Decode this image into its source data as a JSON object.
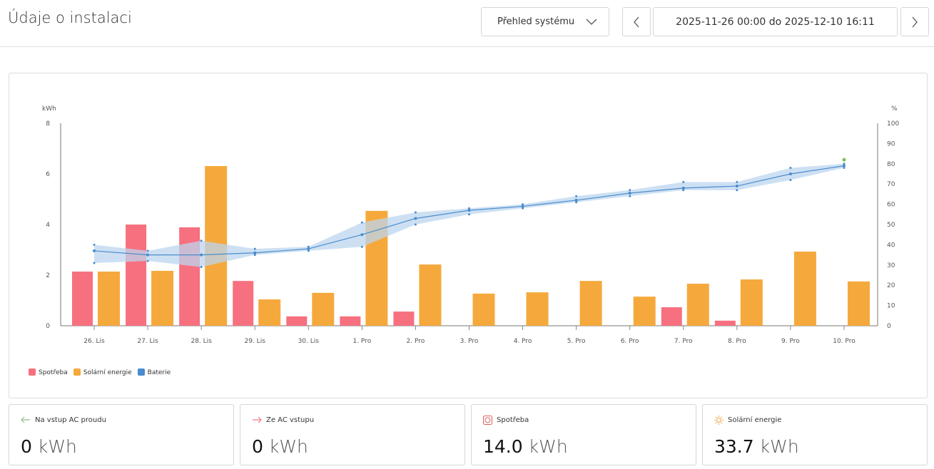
{
  "header": {
    "title": "Údaje o instalaci",
    "view_select": "Přehled systému",
    "date_range": "2025-11-26 00:00 do 2025-12-10 16:11"
  },
  "colors": {
    "consumption": "#f7707f",
    "solar": "#f5a93c",
    "battery": "#4a8ccc",
    "battery_band": "#bcd6ef",
    "battery_latest": "#7cc05a"
  },
  "chart_data": {
    "type": "bar",
    "categories": [
      "26. Lis",
      "27. Lis",
      "28. Lis",
      "29. Lis",
      "30. Lis",
      "1. Pro",
      "2. Pro",
      "3. Pro",
      "4. Pro",
      "5. Pro",
      "6. Pro",
      "7. Pro",
      "8. Pro",
      "9. Pro",
      "10. Pro"
    ],
    "ylabel": "kWh",
    "ylim": [
      0,
      8
    ],
    "yticks": [
      "0",
      "2",
      "4",
      "6",
      "8"
    ],
    "y2label": "%",
    "y2lim": [
      0,
      100
    ],
    "y2ticks": [
      "0",
      "10",
      "20",
      "30",
      "40",
      "50",
      "60",
      "70",
      "80",
      "90",
      "100"
    ],
    "series": [
      {
        "name": "Spotřeba",
        "type": "bar",
        "axis": "left",
        "values": [
          2.14,
          4.0,
          3.89,
          1.77,
          0.37,
          0.37,
          0.56,
          0,
          0,
          0,
          0,
          0.73,
          0.2,
          0,
          0
        ]
      },
      {
        "name": "Solární energie",
        "type": "bar",
        "axis": "left",
        "values": [
          2.14,
          2.17,
          6.31,
          1.04,
          1.3,
          4.54,
          2.42,
          1.27,
          1.32,
          1.77,
          1.15,
          1.66,
          1.83,
          2.93,
          1.75
        ]
      },
      {
        "name": "Baterie",
        "type": "line",
        "axis": "right",
        "values": [
          37,
          35,
          35,
          36,
          38,
          45,
          53,
          57,
          59,
          62,
          65.5,
          68,
          69,
          75,
          79
        ],
        "min": [
          31,
          32,
          29,
          35,
          37,
          39,
          50,
          55,
          58,
          61,
          64,
          67,
          67,
          72,
          78
        ],
        "max": [
          40,
          37,
          42,
          38,
          39,
          51,
          56,
          58,
          60,
          64,
          67,
          71,
          71,
          78,
          80
        ],
        "latest": 82
      }
    ],
    "legend_position": "bottom-left",
    "grid": false
  },
  "stats": [
    {
      "label": "Na vstup AC proudu",
      "value": "0",
      "unit": "kWh",
      "icon": "arrow-left-icon"
    },
    {
      "label": "Ze AC vstupu",
      "value": "0",
      "unit": "kWh",
      "icon": "arrow-right-icon"
    },
    {
      "label": "Spotřeba",
      "value": "14.0",
      "unit": "kWh",
      "icon": "outlet-icon"
    },
    {
      "label": "Solární energie",
      "value": "33.7",
      "unit": "kWh",
      "icon": "sun-icon"
    }
  ]
}
